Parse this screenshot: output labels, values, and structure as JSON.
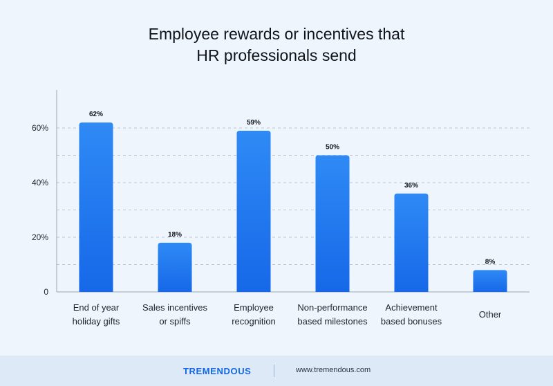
{
  "title_line1": "Employee rewards or incentives that",
  "title_line2": "HR professionals send",
  "colors": {
    "bar_top": "#2f8af5",
    "bar_bottom": "#1668e8",
    "grid": "#b9c6d6",
    "axis": "#9aa6b4",
    "text": "#1d2430",
    "brand": "#1267e6"
  },
  "footer": {
    "brand": "TREMENDOUS",
    "url": "www.tremendous.com"
  },
  "chart_data": {
    "type": "bar",
    "title": "Employee rewards or incentives that HR professionals send",
    "categories": [
      [
        "End of year",
        "holiday gifts"
      ],
      [
        "Sales incentives",
        "or spiffs"
      ],
      [
        "Employee",
        "recognition"
      ],
      [
        "Non-performance",
        "based milestones"
      ],
      [
        "Achievement",
        "based bonuses"
      ],
      [
        "Other"
      ]
    ],
    "values": [
      62,
      18,
      59,
      50,
      36,
      8
    ],
    "value_labels": [
      "62%",
      "18%",
      "59%",
      "50%",
      "36%",
      "8%"
    ],
    "yticks": [
      0,
      20,
      40,
      60
    ],
    "ytick_labels": [
      "0",
      "20%",
      "40%",
      "60%"
    ],
    "ylim": [
      0,
      70
    ],
    "grid": true
  }
}
